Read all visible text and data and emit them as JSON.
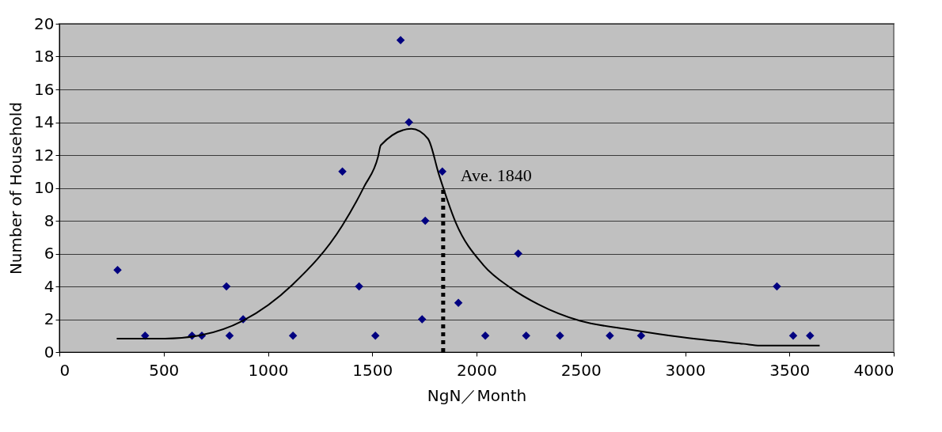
{
  "chart_data": {
    "type": "scatter",
    "xlabel": "NgN／Month",
    "ylabel": "Number of Household",
    "xlim": [
      0,
      4000
    ],
    "xticks": [
      0,
      500,
      1000,
      1500,
      2000,
      2500,
      3000,
      3500,
      4000
    ],
    "ylim": [
      0,
      20
    ],
    "yticks": [
      0,
      2,
      4,
      6,
      8,
      10,
      12,
      14,
      16,
      18,
      20
    ],
    "grid": "y",
    "marker": "diamond",
    "series": [
      {
        "color": "#000080",
        "x": [
          279,
          411,
          636,
          683,
          801,
          816,
          881,
          1120,
          1357,
          1437,
          1515,
          1636,
          1676,
          1739,
          1754,
          1836,
          1913,
          2042,
          2200,
          2238,
          2400,
          2639,
          2789,
          3440,
          3518,
          3599
        ],
        "values": [
          5,
          1,
          1,
          1,
          4,
          1,
          2,
          1,
          11,
          4,
          1,
          19,
          14,
          2,
          8,
          11,
          3,
          1,
          6,
          1,
          1,
          1,
          1,
          4,
          1,
          1
        ]
      },
      {
        "type": "line",
        "color": "#000000",
        "marker": "none",
        "x": [
          275,
          507,
          666,
          878,
          1117,
          1356,
          1462,
          1528,
          1541,
          1688,
          1767,
          1820,
          1900,
          2033,
          2165,
          2298,
          2497,
          2722,
          2988,
          3280,
          3359,
          3645
        ],
        "values": [
          0.82,
          0.82,
          1.0,
          1.9,
          4.1,
          7.7,
          10.1,
          11.9,
          12.6,
          13.6,
          13.0,
          10.8,
          7.9,
          5.3,
          3.9,
          2.9,
          1.9,
          1.4,
          0.9,
          0.5,
          0.4,
          0.4
        ]
      }
    ],
    "ref_lines": [
      {
        "axis": "x",
        "value": 1840,
        "label": "Ave. 1840",
        "color": "#000000",
        "line_style": "dotted"
      }
    ]
  }
}
